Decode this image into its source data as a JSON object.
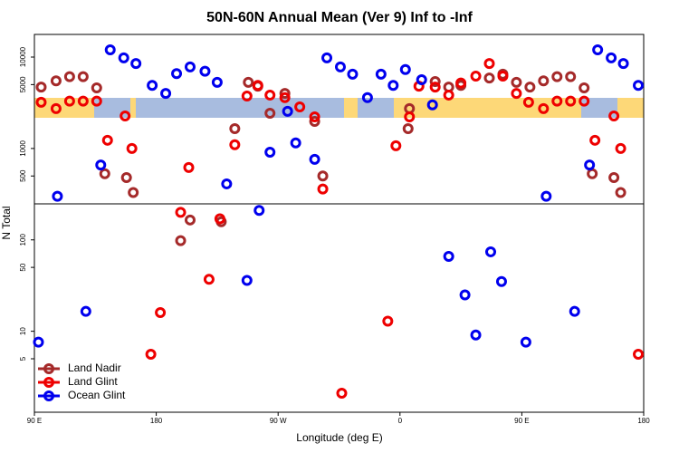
{
  "chart_data": {
    "type": "scatter",
    "title": "50N-60N Annual Mean (Ver 9)   Inf to -Inf",
    "xlabel": "Longitude (deg E)",
    "ylabel": "N Total",
    "xlim": [
      90,
      540
    ],
    "xticks": [
      {
        "value": 90,
        "label": "90 E"
      },
      180,
      {
        "value": 270,
        "label": "90 W"
      },
      {
        "value": 360,
        "label": "0"
      },
      {
        "value": 450,
        "label": "90 E"
      },
      {
        "value": 540,
        "label": "180"
      }
    ],
    "ylim": [
      1.3,
      17700
    ],
    "yscale": "log",
    "yticks": [
      5,
      10,
      50,
      100,
      500,
      1000,
      5000,
      10000
    ],
    "legend": "bottom-left",
    "series": [
      {
        "name": "Land Nadir",
        "color": "#a52a2a",
        "x": [
          95,
          106,
          116,
          126,
          136,
          142,
          158,
          163,
          198,
          205,
          228,
          238,
          248,
          255,
          264,
          275,
          297,
          303,
          366,
          367,
          386,
          396,
          405,
          426,
          436,
          446,
          456,
          466,
          476,
          486,
          496,
          502,
          518,
          523
        ],
        "values": [
          4700,
          5500,
          6100,
          6100,
          4600,
          530,
          480,
          330,
          98,
          165,
          158,
          1650,
          5300,
          4800,
          2430,
          4000,
          1980,
          500,
          1650,
          2730,
          5400,
          4700,
          4900,
          5900,
          6500,
          5300,
          4700,
          5500,
          6100,
          6100,
          4600,
          530,
          480,
          330
        ]
      },
      {
        "name": "Land Glint",
        "color": "#ee0000",
        "x": [
          95,
          106,
          116,
          126,
          136,
          144,
          157,
          162,
          176,
          183,
          198,
          204,
          219,
          227,
          238,
          247,
          255,
          264,
          275,
          286,
          297,
          303,
          317,
          351,
          357,
          367,
          374,
          386,
          396,
          405,
          416,
          426,
          436,
          446,
          455,
          466,
          476,
          486,
          496,
          504,
          518,
          523,
          536
        ],
        "values": [
          3200,
          2730,
          3300,
          3300,
          3300,
          1230,
          2270,
          1000,
          5.6,
          16,
          200,
          620,
          37,
          170,
          1100,
          3750,
          4900,
          3840,
          3600,
          2850,
          2220,
          360,
          2.1,
          12.9,
          1070,
          2220,
          4800,
          4700,
          3840,
          5200,
          6200,
          8500,
          6200,
          4000,
          3200,
          2730,
          3300,
          3300,
          3300,
          1230,
          2270,
          1000,
          5.6
        ]
      },
      {
        "name": "Ocean Glint",
        "color": "#0000ee",
        "x": [
          93,
          107,
          128,
          139,
          146,
          156,
          165,
          177,
          187,
          195,
          205,
          216,
          225,
          232,
          247,
          256,
          264,
          277,
          283,
          297,
          306,
          316,
          325,
          336,
          346,
          355,
          364,
          376,
          384,
          396,
          408,
          416,
          427,
          435,
          453,
          468,
          489,
          500,
          506,
          516,
          525,
          536
        ],
        "values": [
          7.6,
          300,
          16.5,
          660,
          12000,
          9800,
          8500,
          4900,
          4000,
          6600,
          7800,
          7000,
          5300,
          410,
          36,
          210,
          910,
          2550,
          1150,
          760,
          9800,
          7800,
          6500,
          3600,
          6500,
          4900,
          7300,
          5650,
          3000,
          66,
          25,
          9.1,
          74,
          35,
          7.6,
          300,
          16.5,
          660,
          12000,
          9800,
          8500,
          4900
        ]
      }
    ]
  }
}
